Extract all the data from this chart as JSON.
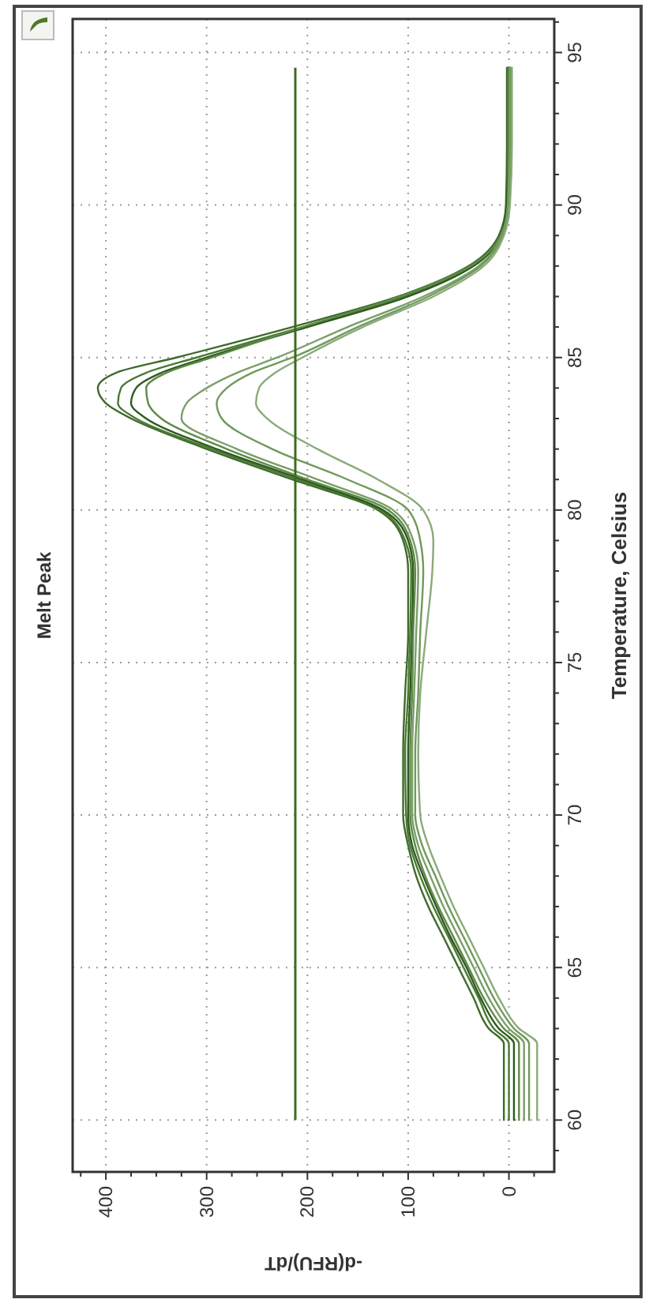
{
  "chart_data": {
    "type": "line",
    "title": "Melt Peak",
    "xlabel": "-d(RFU)/dT",
    "ylabel": "Temperature, Celsius",
    "series": [
      {
        "color": "#3f6b2a",
        "x": [
          5,
          5,
          5,
          5,
          20,
          35,
          50,
          65,
          80,
          92,
          100,
          105,
          105,
          103,
          100,
          100,
          105,
          130,
          215,
          300,
          375,
          400,
          408,
          390,
          330,
          215,
          110,
          40,
          10,
          3,
          2,
          2
        ],
        "values": [
          60,
          61,
          62,
          62.5,
          63,
          64,
          65,
          66,
          67,
          68,
          69,
          70,
          72,
          74,
          76,
          78,
          79,
          80,
          81,
          82,
          83,
          83.5,
          84,
          84.5,
          85,
          86,
          87,
          88,
          89,
          90,
          92,
          94.5
        ]
      },
      {
        "color": "#4a7a35",
        "x": [
          0,
          0,
          0,
          0,
          15,
          30,
          45,
          60,
          75,
          88,
          98,
          102,
          103,
          100,
          98,
          97,
          103,
          128,
          210,
          295,
          370,
          388,
          385,
          360,
          310,
          205,
          105,
          38,
          8,
          2,
          1,
          1
        ],
        "values": [
          60,
          61,
          62,
          62.5,
          63,
          64,
          65,
          66,
          67,
          68,
          69,
          70,
          72,
          74,
          76,
          78,
          79,
          80,
          81,
          82,
          83,
          83.5,
          84,
          84.5,
          85,
          86,
          87,
          88,
          89,
          90,
          92,
          94.5
        ]
      },
      {
        "color": "#2e5a1e",
        "x": [
          -5,
          -5,
          -5,
          -5,
          10,
          28,
          42,
          58,
          72,
          85,
          96,
          100,
          100,
          98,
          96,
          95,
          100,
          125,
          205,
          290,
          360,
          375,
          370,
          345,
          300,
          200,
          100,
          35,
          8,
          2,
          0,
          0
        ],
        "values": [
          60,
          61,
          62,
          62.5,
          63,
          64,
          65,
          66,
          67,
          68,
          69,
          70,
          72,
          74,
          76,
          78,
          79,
          80,
          81,
          82,
          83,
          83.5,
          84,
          84.5,
          85,
          86,
          87,
          88,
          89,
          90,
          92,
          94.5
        ]
      },
      {
        "color": "#5e8a48",
        "x": [
          -10,
          -10,
          -10,
          -10,
          5,
          25,
          40,
          55,
          70,
          83,
          93,
          98,
          98,
          96,
          95,
          93,
          98,
          120,
          200,
          280,
          345,
          358,
          360,
          340,
          295,
          205,
          108,
          38,
          8,
          1,
          0,
          0
        ],
        "values": [
          60,
          61,
          62,
          62.5,
          63,
          64,
          65,
          66,
          67,
          68,
          69,
          70,
          72,
          74,
          76,
          78,
          79,
          80,
          81,
          82,
          83,
          83.5,
          84,
          84.5,
          85,
          86,
          87,
          88,
          89,
          90,
          92,
          94.5
        ]
      },
      {
        "color": "#7a9e68",
        "x": [
          -15,
          -15,
          -15,
          -15,
          0,
          20,
          35,
          50,
          65,
          78,
          90,
          96,
          96,
          94,
          92,
          90,
          95,
          115,
          190,
          270,
          325,
          320,
          300,
          270,
          230,
          160,
          85,
          30,
          7,
          1,
          -1,
          -1
        ],
        "values": [
          60,
          61,
          62,
          62.5,
          63,
          64,
          65,
          66,
          67,
          68,
          69,
          70,
          72,
          74,
          76,
          78,
          79,
          80,
          81,
          82,
          83,
          83.5,
          84,
          84.5,
          85,
          86,
          87,
          88,
          89,
          90,
          92,
          94.5
        ]
      },
      {
        "color": "#6f9a5a",
        "x": [
          -20,
          -20,
          -20,
          -20,
          -5,
          15,
          30,
          45,
          60,
          73,
          86,
          93,
          93,
          90,
          88,
          85,
          88,
          100,
          160,
          235,
          285,
          290,
          280,
          255,
          215,
          150,
          80,
          28,
          6,
          0,
          -2,
          -2
        ],
        "values": [
          60,
          61,
          62,
          62.5,
          63,
          64,
          65,
          66,
          67,
          68,
          69,
          70,
          72,
          74,
          76,
          78,
          79,
          80,
          81,
          82,
          83,
          83.5,
          84,
          84.5,
          85,
          86,
          87,
          88,
          89,
          90,
          92,
          94.5
        ]
      },
      {
        "color": "#8aaa7a",
        "x": [
          -28,
          -28,
          -28,
          -28,
          -10,
          10,
          25,
          40,
          55,
          68,
          80,
          88,
          90,
          88,
          82,
          76,
          75,
          85,
          130,
          190,
          240,
          251,
          248,
          232,
          205,
          145,
          75,
          25,
          5,
          -1,
          -3,
          -3
        ],
        "values": [
          60,
          61,
          62,
          62.5,
          63,
          64,
          65,
          66,
          67,
          68,
          69,
          70,
          72,
          74,
          76,
          78,
          79,
          80,
          81,
          82,
          83,
          83.5,
          84,
          84.5,
          85,
          86,
          87,
          88,
          89,
          90,
          92,
          94.5
        ]
      }
    ],
    "ref_lines": [
      {
        "axis": "x",
        "value": 212,
        "color": "#3d6b1f"
      }
    ],
    "xlim": [
      433,
      -45
    ],
    "xticks": [
      {
        "value": 425,
        "label": null
      },
      400,
      {
        "value": 375,
        "label": null
      },
      {
        "value": 350,
        "label": null
      },
      {
        "value": 325,
        "label": null
      },
      300,
      {
        "value": 275,
        "label": null
      },
      {
        "value": 250,
        "label": null
      },
      {
        "value": 225,
        "label": null
      },
      200,
      {
        "value": 175,
        "label": null
      },
      {
        "value": 150,
        "label": null
      },
      {
        "value": 125,
        "label": null
      },
      100,
      {
        "value": 75,
        "label": null
      },
      {
        "value": 50,
        "label": null
      },
      {
        "value": 25,
        "label": null
      },
      0,
      {
        "value": -25,
        "label": null
      }
    ],
    "ylim": [
      58.3,
      96.1
    ],
    "yticks": [
      {
        "value": 59,
        "label": null
      },
      60,
      {
        "value": 61,
        "label": null
      },
      {
        "value": 62,
        "label": null
      },
      {
        "value": 63,
        "label": null
      },
      {
        "value": 64,
        "label": null
      },
      65,
      {
        "value": 66,
        "label": null
      },
      {
        "value": 67,
        "label": null
      },
      {
        "value": 68,
        "label": null
      },
      {
        "value": 69,
        "label": null
      },
      70,
      {
        "value": 71,
        "label": null
      },
      {
        "value": 72,
        "label": null
      },
      {
        "value": 73,
        "label": null
      },
      {
        "value": 74,
        "label": null
      },
      75,
      {
        "value": 76,
        "label": null
      },
      {
        "value": 77,
        "label": null
      },
      {
        "value": 78,
        "label": null
      },
      {
        "value": 79,
        "label": null
      },
      80,
      {
        "value": 81,
        "label": null
      },
      {
        "value": 82,
        "label": null
      },
      {
        "value": 83,
        "label": null
      },
      {
        "value": 84,
        "label": null
      },
      85,
      {
        "value": 86,
        "label": null
      },
      {
        "value": 87,
        "label": null
      },
      {
        "value": 88,
        "label": null
      },
      {
        "value": 89,
        "label": null
      },
      90,
      {
        "value": 91,
        "label": null
      },
      {
        "value": 92,
        "label": null
      },
      {
        "value": 93,
        "label": null
      },
      {
        "value": 94,
        "label": null
      },
      95,
      {
        "value": 96,
        "label": null
      }
    ],
    "grid": true,
    "line_style": "solid",
    "marker": "none"
  }
}
